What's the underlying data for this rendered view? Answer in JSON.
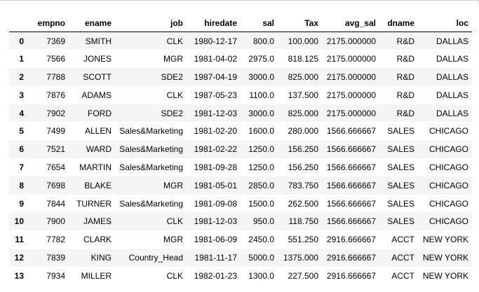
{
  "table": {
    "columns": [
      "",
      "empno",
      "ename",
      "job",
      "hiredate",
      "sal",
      "Tax",
      "avg_sal",
      "dname",
      "loc"
    ],
    "rows": [
      [
        "0",
        "7369",
        "SMITH",
        "CLK",
        "1980-12-17",
        "800.0",
        "100.000",
        "2175.000000",
        "R&D",
        "DALLAS"
      ],
      [
        "1",
        "7566",
        "JONES",
        "MGR",
        "1981-04-02",
        "2975.0",
        "818.125",
        "2175.000000",
        "R&D",
        "DALLAS"
      ],
      [
        "2",
        "7788",
        "SCOTT",
        "SDE2",
        "1987-04-19",
        "3000.0",
        "825.000",
        "2175.000000",
        "R&D",
        "DALLAS"
      ],
      [
        "3",
        "7876",
        "ADAMS",
        "CLK",
        "1987-05-23",
        "1100.0",
        "137.500",
        "2175.000000",
        "R&D",
        "DALLAS"
      ],
      [
        "4",
        "7902",
        "FORD",
        "SDE2",
        "1981-12-03",
        "3000.0",
        "825.000",
        "2175.000000",
        "R&D",
        "DALLAS"
      ],
      [
        "5",
        "7499",
        "ALLEN",
        "Sales&Marketing",
        "1981-02-20",
        "1600.0",
        "280.000",
        "1566.666667",
        "SALES",
        "CHICAGO"
      ],
      [
        "6",
        "7521",
        "WARD",
        "Sales&Marketing",
        "1981-02-22",
        "1250.0",
        "156.250",
        "1566.666667",
        "SALES",
        "CHICAGO"
      ],
      [
        "7",
        "7654",
        "MARTIN",
        "Sales&Marketing",
        "1981-09-28",
        "1250.0",
        "156.250",
        "1566.666667",
        "SALES",
        "CHICAGO"
      ],
      [
        "8",
        "7698",
        "BLAKE",
        "MGR",
        "1981-05-01",
        "2850.0",
        "783.750",
        "1566.666667",
        "SALES",
        "CHICAGO"
      ],
      [
        "9",
        "7844",
        "TURNER",
        "Sales&Marketing",
        "1981-09-08",
        "1500.0",
        "262.500",
        "1566.666667",
        "SALES",
        "CHICAGO"
      ],
      [
        "10",
        "7900",
        "JAMES",
        "CLK",
        "1981-12-03",
        "950.0",
        "118.750",
        "1566.666667",
        "SALES",
        "CHICAGO"
      ],
      [
        "11",
        "7782",
        "CLARK",
        "MGR",
        "1981-06-09",
        "2450.0",
        "551.250",
        "2916.666667",
        "ACCT",
        "NEW YORK"
      ],
      [
        "12",
        "7839",
        "KING",
        "Country_Head",
        "1981-11-17",
        "5000.0",
        "1375.000",
        "2916.666667",
        "ACCT",
        "NEW YORK"
      ],
      [
        "13",
        "7934",
        "MILLER",
        "CLK",
        "1982-01-23",
        "1300.0",
        "227.500",
        "2916.666667",
        "ACCT",
        "NEW YORK"
      ]
    ]
  }
}
